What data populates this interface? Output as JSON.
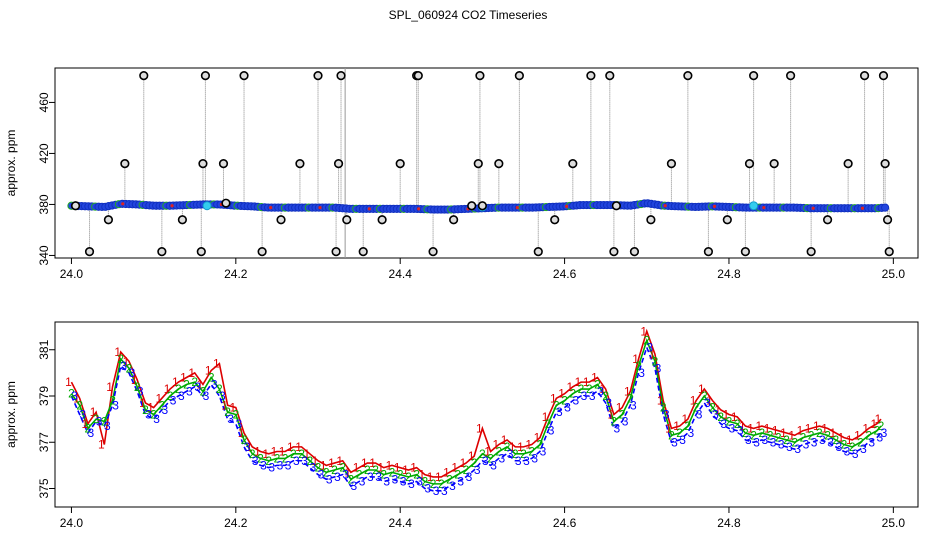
{
  "title": "SPL_060924  CO2 Timeseries",
  "chart_data": [
    {
      "type": "scatter",
      "panel": "top",
      "title": "SPL_060924  CO2 Timeseries",
      "xlabel": "",
      "ylabel": "approx. ppm",
      "xlim": [
        23.98,
        25.03
      ],
      "ylim": [
        338,
        487
      ],
      "xticks": [
        24.0,
        24.2,
        24.4,
        24.6,
        24.8,
        25.0
      ],
      "xtick_labels": [
        "24.0",
        "24.2",
        "24.4",
        "24.6",
        "24.8",
        "25.0"
      ],
      "yticks": [
        340,
        380,
        420,
        460
      ],
      "ytick_labels": [
        "340",
        "380",
        "420",
        "460"
      ],
      "baseline": {
        "x": [
          24.0,
          24.02,
          24.04,
          24.06,
          24.08,
          24.1,
          24.12,
          24.14,
          24.16,
          24.18,
          24.2,
          24.22,
          24.24,
          24.26,
          24.28,
          24.3,
          24.32,
          24.34,
          24.36,
          24.38,
          24.4,
          24.42,
          24.44,
          24.46,
          24.48,
          24.5,
          24.52,
          24.54,
          24.56,
          24.58,
          24.6,
          24.62,
          24.64,
          24.66,
          24.68,
          24.7,
          24.72,
          24.74,
          24.76,
          24.78,
          24.8,
          24.82,
          24.84,
          24.86,
          24.88,
          24.9,
          24.92,
          24.94,
          24.96,
          24.98,
          24.99
        ],
        "y": [
          379,
          378.5,
          378,
          380.5,
          380,
          379,
          379,
          379.5,
          380,
          380,
          379,
          378.5,
          377.5,
          377.5,
          377.5,
          377.5,
          377.5,
          376.5,
          376.5,
          376.5,
          376.5,
          376.5,
          376,
          376,
          376.5,
          377,
          377.5,
          377.5,
          377.5,
          378,
          378.5,
          379.5,
          379.5,
          379.5,
          379,
          381,
          379,
          378.5,
          378,
          378.5,
          378,
          377.5,
          377.5,
          377.5,
          377.5,
          377,
          377,
          377,
          377,
          377,
          377.5
        ]
      },
      "outliers": {
        "x": [
          24.005,
          24.022,
          24.045,
          24.065,
          24.088,
          24.11,
          24.135,
          24.158,
          24.16,
          24.163,
          24.185,
          24.188,
          24.21,
          24.232,
          24.255,
          24.278,
          24.3,
          24.322,
          24.325,
          24.328,
          24.335,
          24.355,
          24.378,
          24.4,
          24.42,
          24.422,
          24.44,
          24.465,
          24.487,
          24.495,
          24.497,
          24.5,
          24.52,
          24.545,
          24.568,
          24.588,
          24.61,
          24.632,
          24.655,
          24.66,
          24.663,
          24.685,
          24.705,
          24.73,
          24.75,
          24.775,
          24.798,
          24.82,
          24.825,
          24.83,
          24.855,
          24.875,
          24.9,
          24.92,
          24.945,
          24.965,
          24.988,
          24.99,
          24.993,
          24.995
        ],
        "y": [
          379,
          343,
          368,
          412,
          481,
          343,
          368,
          343,
          412,
          481,
          412,
          381,
          481,
          343,
          368,
          412,
          481,
          343,
          412,
          481,
          368,
          343,
          368,
          412,
          481,
          481,
          343,
          368,
          379,
          412,
          481,
          379,
          412,
          481,
          343,
          368,
          412,
          481,
          481,
          343,
          379,
          343,
          368,
          412,
          481,
          343,
          368,
          343,
          412,
          481,
          412,
          481,
          343,
          368,
          412,
          481,
          481,
          412,
          368,
          343
        ]
      },
      "highlight_points": {
        "x": [
          24.165,
          24.5,
          24.83
        ],
        "y": [
          379,
          378,
          379
        ]
      },
      "gap_x": 24.333
    },
    {
      "type": "line",
      "panel": "bottom",
      "xlabel": "",
      "ylabel": "approx. ppm",
      "xlim": [
        23.98,
        25.03
      ],
      "ylim": [
        374.2,
        382.2
      ],
      "xticks": [
        24.0,
        24.2,
        24.4,
        24.6,
        24.8,
        25.0
      ],
      "xtick_labels": [
        "24.0",
        "24.2",
        "24.4",
        "24.6",
        "24.8",
        "25.0"
      ],
      "yticks": [
        375,
        377,
        379,
        381
      ],
      "ytick_labels": [
        "375",
        "377",
        "379",
        "381"
      ],
      "x": [
        24.0,
        24.01,
        24.02,
        24.03,
        24.04,
        24.05,
        24.06,
        24.07,
        24.08,
        24.09,
        24.1,
        24.11,
        24.12,
        24.13,
        24.14,
        24.15,
        24.16,
        24.17,
        24.18,
        24.19,
        24.2,
        24.21,
        24.22,
        24.23,
        24.24,
        24.25,
        24.26,
        24.27,
        24.28,
        24.29,
        24.3,
        24.31,
        24.32,
        24.33,
        24.34,
        24.35,
        24.36,
        24.37,
        24.38,
        24.39,
        24.4,
        24.41,
        24.42,
        24.43,
        24.44,
        24.45,
        24.46,
        24.47,
        24.48,
        24.49,
        24.5,
        24.51,
        24.52,
        24.53,
        24.54,
        24.55,
        24.56,
        24.57,
        24.58,
        24.59,
        24.6,
        24.61,
        24.62,
        24.63,
        24.64,
        24.65,
        24.66,
        24.67,
        24.68,
        24.69,
        24.7,
        24.71,
        24.72,
        24.73,
        24.74,
        24.75,
        24.76,
        24.77,
        24.78,
        24.79,
        24.8,
        24.81,
        24.82,
        24.83,
        24.84,
        24.85,
        24.86,
        24.87,
        24.88,
        24.89,
        24.9,
        24.91,
        24.92,
        24.93,
        24.94,
        24.95,
        24.96,
        24.97,
        24.98,
        24.985
      ],
      "series": [
        {
          "name": "3",
          "label": "3",
          "color": "#0000ff",
          "values": [
            379.0,
            378.2,
            377.4,
            377.9,
            377.7,
            378.6,
            380.3,
            380.0,
            379.2,
            378.2,
            378.0,
            378.4,
            378.8,
            379.0,
            379.2,
            379.4,
            379.0,
            379.5,
            379.0,
            378.0,
            377.8,
            376.8,
            376.2,
            376.0,
            375.9,
            376.0,
            376.0,
            376.2,
            376.2,
            375.9,
            375.6,
            375.4,
            375.5,
            375.6,
            375.1,
            375.3,
            375.5,
            375.5,
            375.3,
            375.4,
            375.3,
            375.2,
            375.3,
            375.0,
            374.9,
            374.9,
            375.1,
            375.3,
            375.5,
            375.8,
            376.2,
            376.0,
            376.3,
            376.5,
            376.2,
            376.2,
            376.3,
            376.6,
            377.5,
            378.3,
            378.5,
            378.8,
            379.0,
            379.0,
            379.2,
            378.7,
            377.6,
            377.9,
            378.6,
            380.0,
            381.1,
            380.2,
            378.2,
            377.0,
            377.1,
            377.4,
            378.2,
            378.7,
            378.2,
            377.8,
            377.6,
            377.5,
            377.1,
            377.0,
            377.1,
            377.0,
            376.9,
            376.8,
            376.7,
            376.9,
            377.0,
            377.1,
            377.0,
            376.8,
            376.6,
            376.5,
            376.7,
            377.0,
            377.2,
            377.4
          ]
        },
        {
          "name": "2",
          "label": "2",
          "color": "#00aa00",
          "values": [
            379.1,
            378.6,
            377.6,
            378.0,
            377.9,
            378.8,
            380.6,
            380.2,
            379.4,
            378.4,
            378.2,
            378.6,
            379.0,
            379.3,
            379.5,
            379.6,
            379.2,
            379.8,
            379.3,
            378.3,
            378.2,
            377.1,
            376.5,
            376.3,
            376.2,
            376.3,
            376.3,
            376.5,
            376.5,
            376.2,
            375.9,
            375.7,
            375.8,
            375.9,
            375.4,
            375.6,
            375.8,
            375.8,
            375.6,
            375.7,
            375.6,
            375.5,
            375.6,
            375.3,
            375.2,
            375.2,
            375.4,
            375.6,
            375.8,
            376.1,
            376.5,
            376.3,
            376.6,
            376.8,
            376.5,
            376.5,
            376.6,
            376.9,
            377.8,
            378.6,
            378.8,
            379.1,
            379.3,
            379.3,
            379.5,
            379.0,
            377.9,
            378.2,
            378.9,
            380.3,
            381.4,
            380.5,
            378.5,
            377.3,
            377.4,
            377.7,
            378.5,
            379.0,
            378.5,
            378.1,
            377.9,
            377.8,
            377.4,
            377.3,
            377.4,
            377.3,
            377.2,
            377.1,
            377.0,
            377.2,
            377.3,
            377.4,
            377.3,
            377.1,
            376.9,
            376.8,
            377.0,
            377.3,
            377.5,
            377.7
          ]
        },
        {
          "name": "1",
          "label": "1",
          "color": "#dd0000",
          "values": [
            379.6,
            378.9,
            377.8,
            378.3,
            376.9,
            379.4,
            380.9,
            380.5,
            379.7,
            378.7,
            378.5,
            378.9,
            379.3,
            379.6,
            379.8,
            380.0,
            379.5,
            380.1,
            380.4,
            378.6,
            378.5,
            377.4,
            376.8,
            376.6,
            376.5,
            376.6,
            376.6,
            376.8,
            376.8,
            376.5,
            376.2,
            376.0,
            376.1,
            376.2,
            375.7,
            375.9,
            376.1,
            376.1,
            375.9,
            376.0,
            375.9,
            375.8,
            375.9,
            375.6,
            375.5,
            375.5,
            375.7,
            375.9,
            376.1,
            376.4,
            377.6,
            376.6,
            376.9,
            377.1,
            376.8,
            376.8,
            376.9,
            377.2,
            378.1,
            378.9,
            379.1,
            379.4,
            379.6,
            379.6,
            379.8,
            379.3,
            378.2,
            378.5,
            379.2,
            380.6,
            381.8,
            380.8,
            378.8,
            377.6,
            377.7,
            378.0,
            378.8,
            379.3,
            378.8,
            378.4,
            378.2,
            378.1,
            377.7,
            377.6,
            377.7,
            377.6,
            377.5,
            377.4,
            377.3,
            377.5,
            377.6,
            377.7,
            377.6,
            377.4,
            377.2,
            377.1,
            377.3,
            377.6,
            377.8,
            378.0
          ]
        }
      ]
    }
  ]
}
